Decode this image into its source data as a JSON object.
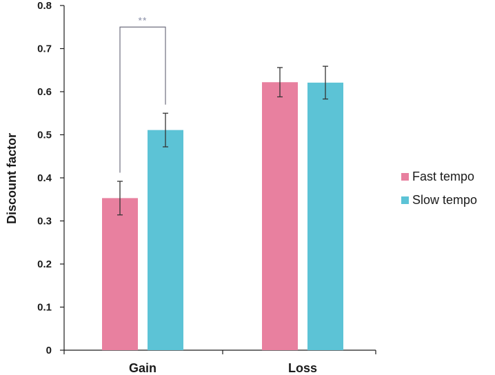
{
  "chart_data": {
    "type": "bar",
    "categories": [
      "Gain",
      "Loss"
    ],
    "series": [
      {
        "name": "Fast tempo",
        "values": [
          0.353,
          0.622
        ],
        "errors": [
          0.039,
          0.034
        ],
        "color": "#e8809f"
      },
      {
        "name": "Slow tempo",
        "values": [
          0.511,
          0.621
        ],
        "errors": [
          0.039,
          0.038
        ],
        "color": "#5cc3d6"
      }
    ],
    "ylabel": "Discount factor",
    "xlabel": "",
    "ylim": [
      0,
      0.8
    ],
    "yticks": [
      "0",
      "0.1",
      "0.2",
      "0.3",
      "0.4",
      "0.5",
      "0.6",
      "0.7",
      "0.8"
    ],
    "yticks_values": [
      0,
      0.1,
      0.2,
      0.3,
      0.4,
      0.5,
      0.6,
      0.7,
      0.8
    ],
    "grid": false,
    "legend_position": "right",
    "annotations": [
      {
        "text": "**",
        "category": "Gain",
        "between_series": [
          0,
          1
        ],
        "bracket_top": 0.75
      }
    ]
  }
}
